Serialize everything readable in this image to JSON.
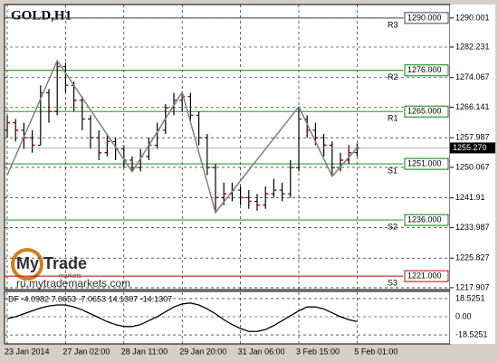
{
  "chart_data": {
    "type": "ohlc",
    "title": "GOLD,H1",
    "categories": [
      "23 Jan 2014",
      null,
      null,
      null,
      null,
      null,
      null,
      "27 Jan 02:00",
      null,
      null,
      null,
      null,
      null,
      null,
      "28 Jan 11:00",
      null,
      null,
      null,
      null,
      null,
      null,
      "29 Jan 20:00",
      null,
      null,
      null,
      null,
      null,
      null,
      "31 Jan 06:00",
      null,
      null,
      null,
      null,
      null,
      null,
      "3 Feb 15:00",
      null,
      null,
      null,
      null,
      null,
      null,
      "5 Feb 01:00"
    ],
    "open": [
      1260,
      1262,
      1260,
      1258,
      1256,
      1270,
      1265,
      1277,
      1272,
      1268,
      1263,
      1258,
      1254,
      1257,
      1255,
      1252,
      1250,
      1253,
      1256,
      1260,
      1266,
      1268,
      1269,
      1264,
      1258,
      1250,
      1242,
      1243,
      1244,
      1242,
      1241,
      1240,
      1243,
      1244,
      1243,
      1250,
      1263,
      1260,
      1258,
      1256,
      1250,
      1252,
      1254
    ],
    "high": [
      1264,
      1263,
      1262,
      1260,
      1272,
      1271,
      1278.6,
      1278,
      1273,
      1269,
      1264,
      1260,
      1259,
      1258,
      1256,
      1253,
      1255,
      1258,
      1262,
      1267,
      1270,
      1270.2,
      1270,
      1265,
      1259,
      1251,
      1246,
      1246,
      1245,
      1244,
      1243,
      1245,
      1247,
      1246,
      1252,
      1266.3,
      1264,
      1262,
      1259,
      1257,
      1254,
      1256,
      1256.5
    ],
    "low": [
      1258,
      1257,
      1255,
      1254,
      1256,
      1262,
      1264,
      1270,
      1265,
      1260,
      1255,
      1252,
      1253,
      1252,
      1250,
      1248.9,
      1249,
      1252,
      1255,
      1259,
      1264,
      1265,
      1262,
      1256,
      1248,
      1238,
      1240,
      1241,
      1240,
      1239,
      1238.5,
      1239,
      1242,
      1241,
      1242,
      1249,
      1258,
      1256,
      1253,
      1247.7,
      1249,
      1251,
      1253
    ],
    "close": [
      1262,
      1260,
      1258,
      1256,
      1270,
      1265,
      1277,
      1272,
      1268,
      1263,
      1258,
      1254,
      1257,
      1255,
      1252,
      1250,
      1253,
      1256,
      1260,
      1266,
      1268,
      1269,
      1264,
      1258,
      1250,
      1242,
      1243,
      1244,
      1242,
      1241,
      1240,
      1243,
      1244,
      1243,
      1250,
      1263,
      1260,
      1258,
      1256,
      1250,
      1252,
      1254,
      1255.27
    ],
    "bar_color": "#000000",
    "close_color": "#cc0000",
    "zigzag": {
      "color": "#808080",
      "x": [
        0,
        6,
        15,
        21,
        25,
        35,
        39,
        42
      ],
      "values": [
        1248,
        1278.6,
        1248.9,
        1270.2,
        1238,
        1266.3,
        1247.7,
        1255.3
      ]
    },
    "ylim": [
      1217.4,
      1293.6
    ],
    "yticks": [
      1290.001,
      1282.231,
      1274.067,
      1266.141,
      1257.987,
      1250.067,
      1241.91,
      1233.987,
      1225.827,
      1217.907
    ],
    "levels": [
      {
        "name": "R3",
        "value": 1290,
        "label": "1290.000",
        "color": "#404040"
      },
      {
        "name": "R2",
        "value": 1276,
        "label": "1276.000",
        "color": "#008000"
      },
      {
        "name": "R1",
        "value": 1265,
        "label": "1265.000",
        "color": "#008000"
      },
      {
        "name": "S1",
        "value": 1251,
        "label": "1251.000",
        "color": "#008000"
      },
      {
        "name": "S2",
        "value": 1236,
        "label": "1236.000",
        "color": "#008000"
      },
      {
        "name": "S3",
        "value": 1221,
        "label": "1221.000",
        "color": "#cc0000"
      }
    ],
    "current_price": {
      "value": 1255.27,
      "label": "1255.270"
    },
    "grid": true,
    "indicator": {
      "label": "DF -4.0982 7.0653 -7.0653 14.1307 -14.1307",
      "color": "#000000",
      "values": [
        -2,
        0,
        3,
        6,
        9,
        11,
        12,
        12,
        10,
        7,
        3,
        -1,
        -5,
        -8,
        -10,
        -10,
        -8,
        -4,
        0,
        5,
        10,
        13,
        14,
        12,
        8,
        3,
        -3,
        -8,
        -12,
        -15,
        -15,
        -13,
        -9,
        -4,
        1,
        6,
        10,
        10,
        8,
        4,
        0,
        -3,
        -5
      ],
      "ylim": [
        -24,
        24
      ],
      "yticks": [
        18.5251,
        {
          "value": 0,
          "label": "0.00"
        },
        -18.5251
      ]
    }
  },
  "watermark": {
    "brand": "My Trade",
    "sub": "markets",
    "url": "ru.mytrademarkets.com"
  }
}
